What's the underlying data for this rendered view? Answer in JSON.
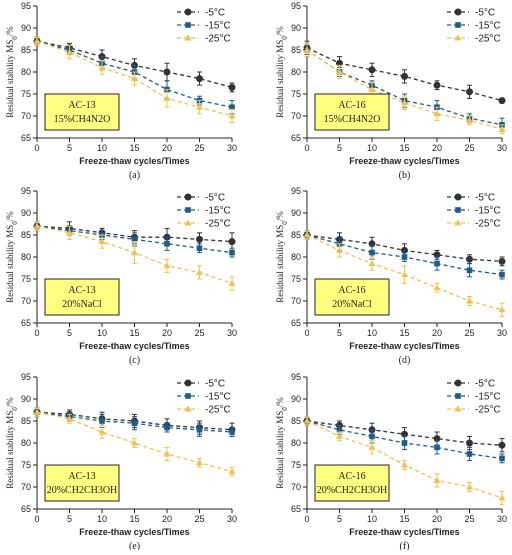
{
  "chart_data": [
    {
      "type": "line",
      "panel_label": "(a)",
      "xlabel": "Freeze-thaw cycles/Times",
      "ylabel": "Residual stability MS",
      "ylabel_sub": "0",
      "ylabel_suffix": "/%",
      "xlim": [
        0,
        30
      ],
      "ylim": [
        65,
        95
      ],
      "xticks": [
        0,
        5,
        10,
        15,
        20,
        25,
        30
      ],
      "yticks": [
        65,
        70,
        75,
        80,
        85,
        90,
        95
      ],
      "legend_position": "top-right",
      "annotation": [
        "AC-13",
        "15%CH4N2O"
      ],
      "x": [
        0,
        5,
        10,
        15,
        20,
        25,
        30
      ],
      "series": [
        {
          "name": "-5°C",
          "color": "#333333",
          "values": [
            87,
            85.5,
            83.5,
            81.5,
            80,
            78.5,
            76.5
          ],
          "errors": [
            1,
            1,
            1.5,
            1.5,
            2,
            1.5,
            1
          ]
        },
        {
          "name": "-15°C",
          "color": "#1f5c8a",
          "values": [
            87,
            85,
            82,
            80,
            76,
            73.5,
            72
          ],
          "errors": [
            1,
            1,
            1.5,
            1.5,
            2,
            1,
            1.5
          ]
        },
        {
          "name": "-25°C",
          "color": "#f2c14e",
          "values": [
            87,
            84.5,
            81,
            78.5,
            74,
            72,
            70
          ],
          "errors": [
            1,
            1.5,
            1.5,
            1.5,
            2,
            1.5,
            1.5
          ]
        }
      ]
    },
    {
      "type": "line",
      "panel_label": "(b)",
      "xlabel": "Freeze-thaw cycles/Times",
      "ylabel": "Residual stability MS",
      "ylabel_sub": "0",
      "ylabel_suffix": "/%",
      "xlim": [
        0,
        30
      ],
      "ylim": [
        65,
        95
      ],
      "xticks": [
        0,
        5,
        10,
        15,
        20,
        25,
        30
      ],
      "yticks": [
        65,
        70,
        75,
        80,
        85,
        90,
        95
      ],
      "legend_position": "top-right",
      "annotation": [
        "AC-16",
        "15%CH4N2O"
      ],
      "x": [
        0,
        5,
        10,
        15,
        20,
        25,
        30
      ],
      "series": [
        {
          "name": "-5°C",
          "color": "#333333",
          "values": [
            85.5,
            82,
            80.5,
            79,
            77,
            75.5,
            73.5
          ],
          "errors": [
            1.5,
            1.5,
            1.5,
            1.5,
            1,
            1.5,
            0.5
          ]
        },
        {
          "name": "-15°C",
          "color": "#1f5c8a",
          "values": [
            85,
            80,
            77,
            73.5,
            72,
            69.5,
            68
          ],
          "errors": [
            1.5,
            1,
            1,
            1.5,
            1.5,
            1,
            1.5
          ]
        },
        {
          "name": "-25°C",
          "color": "#f2c14e",
          "values": [
            85,
            80,
            76,
            73,
            70.5,
            69,
            67
          ],
          "errors": [
            1.5,
            1.5,
            1.5,
            1.5,
            1.5,
            1,
            1
          ]
        }
      ]
    },
    {
      "type": "line",
      "panel_label": "(c)",
      "xlabel": "Freeze-thaw cycles/Times",
      "ylabel": "Residual stability MS",
      "ylabel_sub": "0",
      "ylabel_suffix": "/%",
      "xlim": [
        0,
        30
      ],
      "ylim": [
        65,
        95
      ],
      "xticks": [
        0,
        5,
        10,
        15,
        20,
        25,
        30
      ],
      "yticks": [
        65,
        70,
        75,
        80,
        85,
        90,
        95
      ],
      "legend_position": "top-right",
      "annotation": [
        "AC-13",
        "20%NaCl"
      ],
      "x": [
        0,
        5,
        10,
        15,
        20,
        25,
        30
      ],
      "series": [
        {
          "name": "-5°C",
          "color": "#333333",
          "values": [
            87,
            86.5,
            85.5,
            84.5,
            84.5,
            84,
            83.5
          ],
          "errors": [
            1,
            1.5,
            1,
            1.5,
            2,
            1.5,
            2
          ]
        },
        {
          "name": "-15°C",
          "color": "#1f5c8a",
          "values": [
            87,
            86,
            85,
            84,
            83,
            82,
            81
          ],
          "errors": [
            1,
            1,
            1,
            1.5,
            1.5,
            1,
            1
          ]
        },
        {
          "name": "-25°C",
          "color": "#f2c14e",
          "values": [
            87,
            85.5,
            83.5,
            81,
            78,
            76.5,
            74
          ],
          "errors": [
            1,
            1.5,
            1.5,
            2.5,
            1.5,
            1.5,
            1.5
          ]
        }
      ]
    },
    {
      "type": "line",
      "panel_label": "(d)",
      "xlabel": "Freeze-thaw cycles/Times",
      "ylabel": "Residual stability MS",
      "ylabel_sub": "0",
      "ylabel_suffix": "/%",
      "xlim": [
        0,
        30
      ],
      "ylim": [
        65,
        95
      ],
      "xticks": [
        0,
        5,
        10,
        15,
        20,
        25,
        30
      ],
      "yticks": [
        65,
        70,
        75,
        80,
        85,
        90,
        95
      ],
      "legend_position": "top-right",
      "annotation": [
        "AC-16",
        "20%NaCl"
      ],
      "x": [
        0,
        5,
        10,
        15,
        20,
        25,
        30
      ],
      "series": [
        {
          "name": "-5°C",
          "color": "#333333",
          "values": [
            85,
            84,
            83,
            81.5,
            80.5,
            79.5,
            79
          ],
          "errors": [
            1,
            1.5,
            1.5,
            1.5,
            1,
            1,
            1
          ]
        },
        {
          "name": "-15°C",
          "color": "#1f5c8a",
          "values": [
            85,
            83,
            81,
            80,
            78.5,
            77,
            76
          ],
          "errors": [
            1,
            1.5,
            1.5,
            1,
            1.5,
            1.5,
            1
          ]
        },
        {
          "name": "-25°C",
          "color": "#f2c14e",
          "values": [
            85,
            81.5,
            78.5,
            76,
            73,
            70,
            68
          ],
          "errors": [
            1,
            1.5,
            1.5,
            2,
            1,
            1,
            1.5
          ]
        }
      ]
    },
    {
      "type": "line",
      "panel_label": "(e)",
      "xlabel": "Freeze-thaw cycles/Times",
      "ylabel": "Residual stability MS",
      "ylabel_sub": "0",
      "ylabel_suffix": "/%",
      "xlim": [
        0,
        30
      ],
      "ylim": [
        65,
        95
      ],
      "xticks": [
        0,
        5,
        10,
        15,
        20,
        25,
        30
      ],
      "yticks": [
        65,
        70,
        75,
        80,
        85,
        90,
        95
      ],
      "legend_position": "top-right",
      "annotation": [
        "AC-13",
        "20%CH2CH3OH"
      ],
      "x": [
        0,
        5,
        10,
        15,
        20,
        25,
        30
      ],
      "series": [
        {
          "name": "-5°C",
          "color": "#333333",
          "values": [
            87,
            86.5,
            85.5,
            85,
            84,
            83.5,
            83
          ],
          "errors": [
            1,
            1,
            1.5,
            1.5,
            1.5,
            1.5,
            1.5
          ]
        },
        {
          "name": "-15°C",
          "color": "#1f5c8a",
          "values": [
            87,
            86,
            85,
            84.5,
            83.5,
            83,
            82.5
          ],
          "errors": [
            1,
            1,
            1.5,
            1.5,
            1,
            1.5,
            1
          ]
        },
        {
          "name": "-25°C",
          "color": "#f2c14e",
          "values": [
            87,
            85.5,
            82.5,
            80,
            77.5,
            75.5,
            73.5
          ],
          "errors": [
            1,
            1,
            1.5,
            1,
            1.5,
            1,
            1
          ]
        }
      ]
    },
    {
      "type": "line",
      "panel_label": "(f)",
      "xlabel": "Freeze-thaw cycles/Times",
      "ylabel": "Residual stability MS",
      "ylabel_sub": "0",
      "ylabel_suffix": "/%",
      "xlim": [
        0,
        30
      ],
      "ylim": [
        65,
        95
      ],
      "xticks": [
        0,
        5,
        10,
        15,
        20,
        25,
        30
      ],
      "yticks": [
        65,
        70,
        75,
        80,
        85,
        90,
        95
      ],
      "legend_position": "top-right",
      "annotation": [
        "AC-16",
        "20%CH2CH3OH"
      ],
      "x": [
        0,
        5,
        10,
        15,
        20,
        25,
        30
      ],
      "series": [
        {
          "name": "-5°C",
          "color": "#333333",
          "values": [
            85,
            84,
            83,
            82,
            81,
            80,
            79.5
          ],
          "errors": [
            1,
            1,
            1.5,
            1.5,
            1.5,
            1.5,
            1.5
          ]
        },
        {
          "name": "-15°C",
          "color": "#1f5c8a",
          "values": [
            85,
            83,
            81.5,
            80,
            79,
            77.5,
            76.5
          ],
          "errors": [
            1,
            1,
            1.5,
            1.5,
            1.5,
            1.5,
            1
          ]
        },
        {
          "name": "-25°C",
          "color": "#f2c14e",
          "values": [
            85,
            81.5,
            79,
            75,
            71.5,
            70,
            67.5
          ],
          "errors": [
            1,
            1,
            1.5,
            1,
            1.5,
            1,
            1.5
          ]
        }
      ]
    }
  ]
}
